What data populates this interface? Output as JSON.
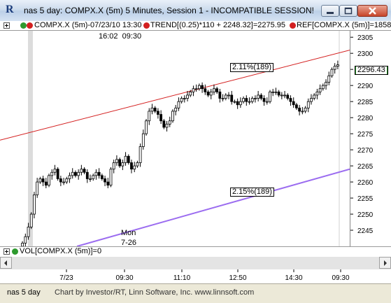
{
  "window": {
    "title": "nas 5 day: COMPX.X (5m) 5 Minutes, Session 1 - INCOMPATIBLE SESSION!",
    "app_icon": "R"
  },
  "infobar": {
    "symbol_label": "COMPX.X (5m)-07/23/10 13:30",
    "trend_label": "TREND[(0.25)*110 + 2248.32]=2275.95",
    "ref_label": "REF[COMPX.X (5m)]=1858",
    "time_row": "16:02  09:30"
  },
  "colors": {
    "dot_green": "#2e9a2e",
    "dot_red": "#d32020",
    "trend_red": "#d42020",
    "trend_purple": "#9b6cf0",
    "shade": "#dcdcdc",
    "price_marker": "#2b9a2b"
  },
  "annotations": {
    "upper_channel": "2.11%(189)",
    "lower_channel": "2.15%(189)",
    "mon_label": "Mon",
    "date_label": "7-26",
    "current_price": "2296.43"
  },
  "volume": {
    "label": "VOL[COMPX.X (5m)]=0"
  },
  "status": {
    "left": "nas 5 day",
    "credit": "Chart by Investor/RT, Linn Software, Inc. www.linnsoft.com"
  },
  "chart_data": {
    "type": "candlestick",
    "y_ticks": [
      2245,
      2250,
      2255,
      2260,
      2265,
      2270,
      2275,
      2280,
      2285,
      2290,
      2295,
      2300,
      2305
    ],
    "y_range": [
      2240,
      2307
    ],
    "x_ticks": [
      "7/23",
      "09:30",
      "11:10",
      "12:50",
      "14:30",
      "09:30"
    ],
    "current_price": 2296.43,
    "trend_upper": [
      2273,
      2301
    ],
    "trend_lower": [
      2240,
      2264
    ],
    "closes": [
      2241,
      2243,
      2246,
      2250,
      2256,
      2260,
      2261,
      2260,
      2259,
      2262,
      2263,
      2264,
      2261,
      2260,
      2260,
      2261,
      2262,
      2263,
      2262,
      2263,
      2264,
      2263,
      2261,
      2261,
      2262,
      2263,
      2262,
      2261,
      2260,
      2259,
      2264,
      2266,
      2267,
      2265,
      2266,
      2268,
      2266,
      2264,
      2265,
      2266,
      2271,
      2275,
      2279,
      2282,
      2283,
      2282,
      2281,
      2279,
      2277,
      2278,
      2279,
      2282,
      2283,
      2285,
      2286,
      2286,
      2287,
      2288,
      2289,
      2289,
      2290,
      2289,
      2288,
      2287,
      2288,
      2289,
      2288,
      2286,
      2286,
      2287,
      2287,
      2285,
      2285,
      2284,
      2285,
      2286,
      2285,
      2285,
      2286,
      2286,
      2287,
      2286,
      2285,
      2285,
      2288,
      2288,
      2288,
      2287,
      2287,
      2287,
      2286,
      2285,
      2284,
      2283,
      2282,
      2282,
      2283,
      2285,
      2286,
      2287,
      2288,
      2289,
      2290,
      2291,
      2293,
      2295,
      2296,
      2296.43
    ]
  }
}
